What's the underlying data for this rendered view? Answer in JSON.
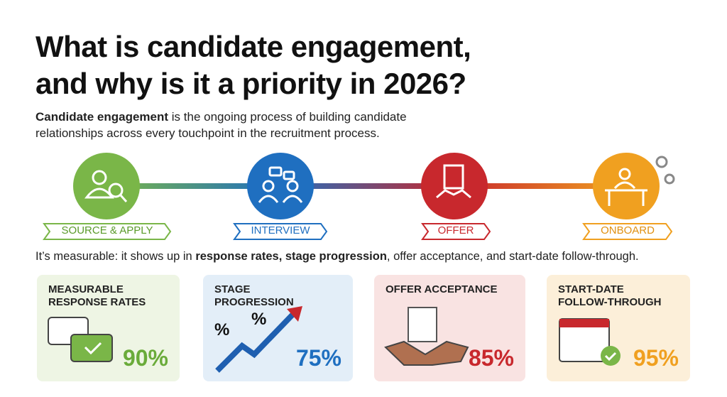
{
  "header": {
    "title_lines": [
      "What is candidate engagement,",
      "and why is it a priority in 2026?"
    ],
    "intro": [
      {
        "text": "Candidate engagement",
        "bold": true
      },
      {
        "text": " is the ongoing process of building candidate relationships across every touchpoint in the recruitment process.",
        "bold": false
      }
    ]
  },
  "stages": [
    {
      "label": "SOURCE & APPLY"
    },
    {
      "label": "INTERVIEW"
    },
    {
      "label": "OFFER"
    },
    {
      "label": "ONBOARD"
    }
  ],
  "measurable": [
    {
      "text": "It’s measurable: it shows up in ",
      "bold": false
    },
    {
      "text": "response rates, stage progression",
      "bold": true
    },
    {
      "text": ", offer acceptance, and start-date follow-through.",
      "bold": false
    }
  ],
  "cards": [
    {
      "title": "MEASURABLE RESPONSE RATES",
      "value": "90%"
    },
    {
      "title": "STAGE PROGRESSION",
      "value": "75%"
    },
    {
      "title": "OFFER ACCEPTANCE",
      "value": "85%"
    },
    {
      "title": "START-DATE FOLLOW-THROUGH",
      "value": "95%"
    }
  ]
}
